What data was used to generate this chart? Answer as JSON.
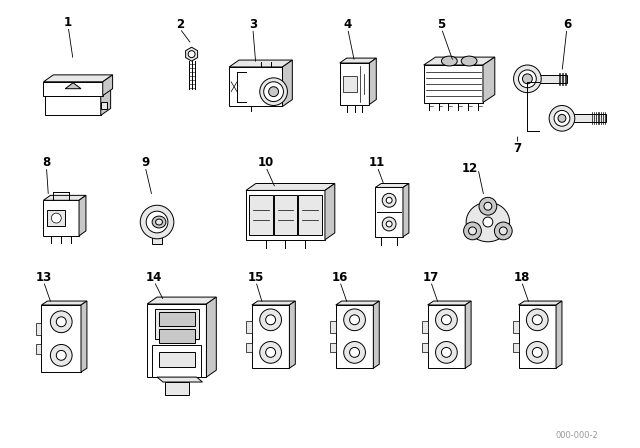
{
  "background_color": "#ffffff",
  "watermark": "000-000-2",
  "line_color": "#000000",
  "gray1": "#c8c8c8",
  "gray2": "#e8e8e8",
  "gray3": "#a8a8a8"
}
